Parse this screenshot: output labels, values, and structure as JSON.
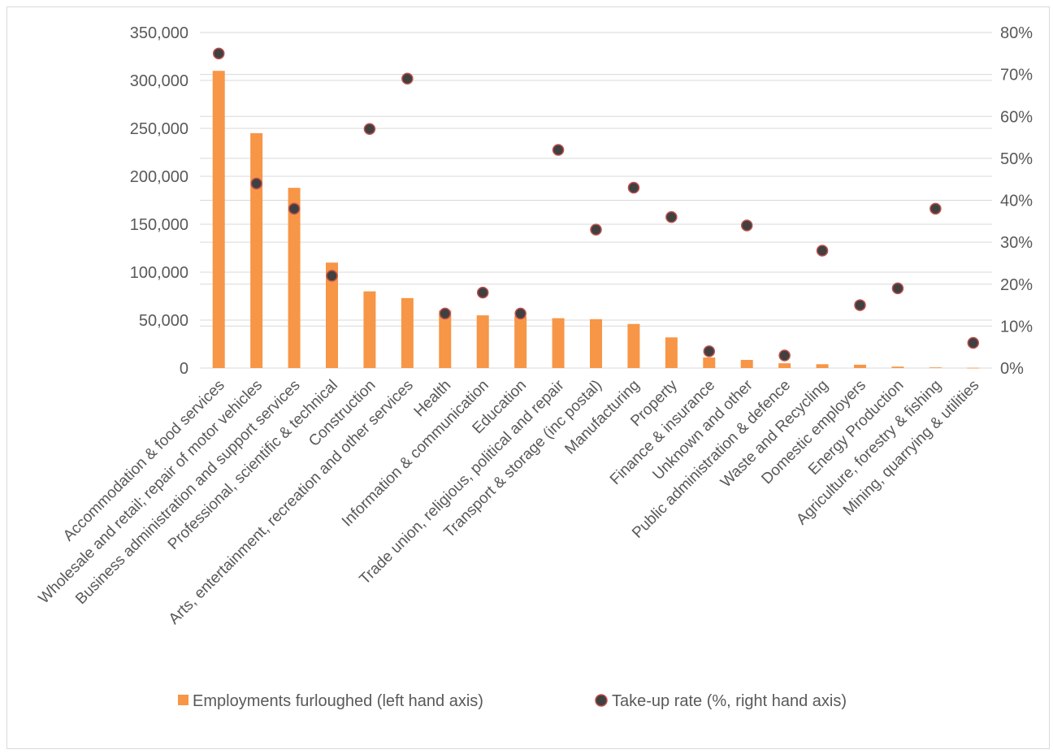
{
  "chart_data": {
    "type": "bar",
    "categories": [
      "Accommodation & food services",
      "Wholesale and retail; repair of motor vehicles",
      "Business administration and support services",
      "Professional, scientific & technical",
      "Construction",
      "Arts, entertainment, recreation and other services",
      "Health",
      "Information & communication",
      "Education",
      "Trade union, religious, political and repair",
      "Transport & storage (inc postal)",
      "Manufacturing",
      "Property",
      "Finance & insurance",
      "Unknown and other",
      "Public administration & defence",
      "Waste and Recycling",
      "Domestic employers",
      "Energy Production",
      "Agriculture, forestry & fishing",
      "Mining, quarrying & utilities"
    ],
    "series": [
      {
        "name": "Employments furloughed (left hand axis)",
        "type": "bar",
        "axis": "left",
        "color": "#F79646",
        "values": [
          310000,
          245000,
          188000,
          110000,
          80000,
          73000,
          60000,
          55000,
          54000,
          52000,
          51000,
          46000,
          32000,
          11000,
          8500,
          5000,
          4000,
          3500,
          1500,
          700,
          300
        ]
      },
      {
        "name": "Take-up rate (%, right hand axis)",
        "type": "scatter",
        "axis": "right",
        "color": "#404040",
        "edge_color": "#C0504D",
        "values": [
          75,
          44,
          38,
          22,
          57,
          69,
          13,
          18,
          13,
          52,
          33,
          43,
          36,
          4,
          34,
          3,
          28,
          15,
          19,
          38,
          6
        ]
      }
    ],
    "y_left": {
      "ylim": [
        0,
        350000
      ],
      "ticks": [
        "0",
        "50,000",
        "100,000",
        "150,000",
        "200,000",
        "250,000",
        "300,000",
        "350,000"
      ]
    },
    "y_right": {
      "ylim": [
        0,
        80
      ],
      "ticks": [
        "0%",
        "10%",
        "20%",
        "30%",
        "40%",
        "50%",
        "60%",
        "70%",
        "80%"
      ]
    },
    "grid": true,
    "legend_position": "bottom"
  }
}
